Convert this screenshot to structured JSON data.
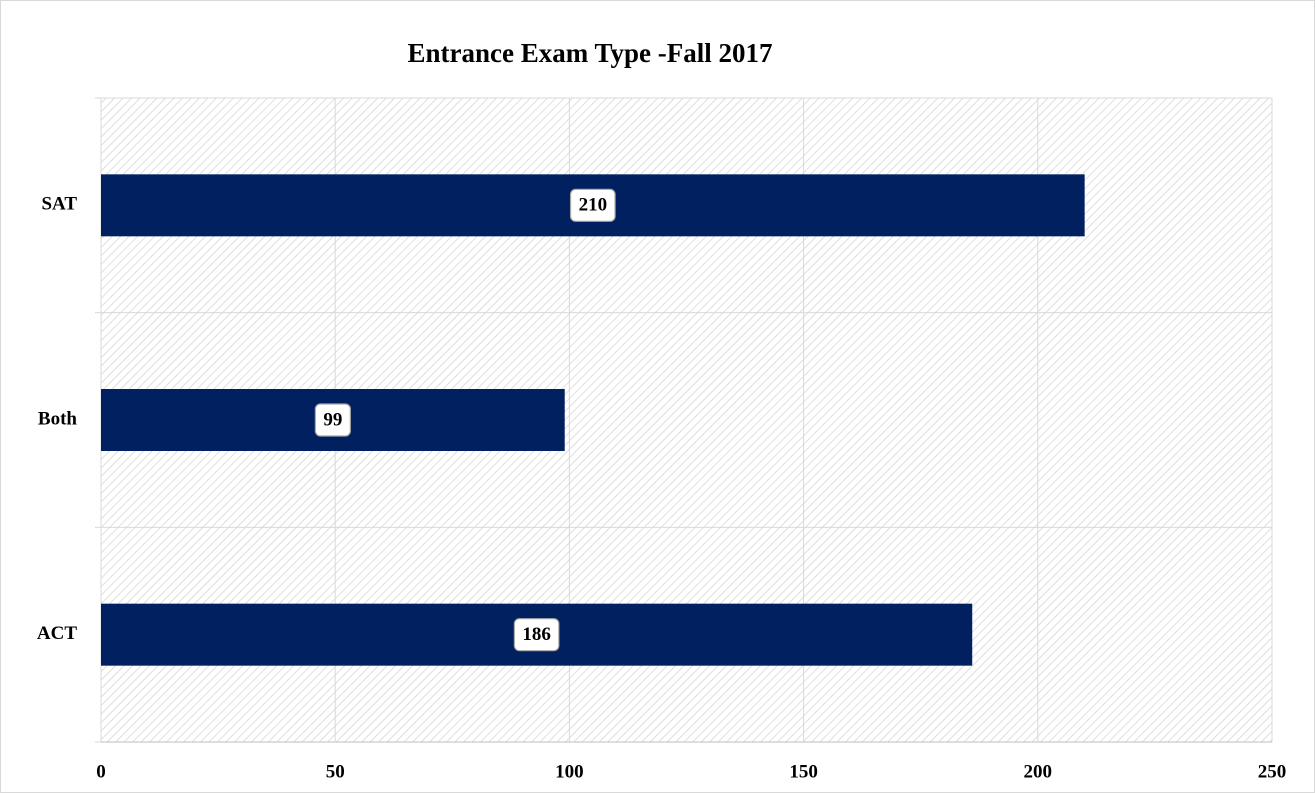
{
  "chart_data": {
    "type": "bar",
    "orientation": "horizontal",
    "title": "Entrance Exam Type -Fall 2017",
    "categories": [
      "SAT",
      "Both",
      "ACT"
    ],
    "values": [
      210,
      99,
      186
    ],
    "color": "#002060",
    "xlim": [
      0,
      250
    ],
    "xticks": [
      0,
      50,
      100,
      150,
      200,
      250
    ],
    "grid": true
  }
}
